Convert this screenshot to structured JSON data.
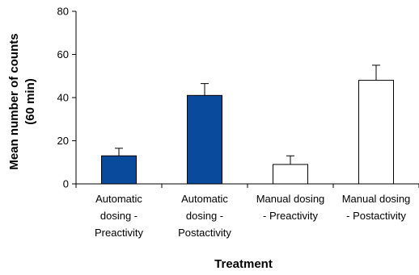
{
  "chart_data": {
    "type": "bar",
    "categories": [
      [
        "Automatic",
        "dosing -",
        "Preactivity"
      ],
      [
        "Automatic",
        "dosing -",
        "Postactivity"
      ],
      [
        "Manual dosing",
        "- Preactivity"
      ],
      [
        "Manual dosing",
        "- Postactivity"
      ]
    ],
    "values": [
      13,
      41,
      9,
      48
    ],
    "errors": [
      3.5,
      5.5,
      4,
      7
    ],
    "fills": [
      "#0a4a9c",
      "#0a4a9c",
      "#ffffff",
      "#ffffff"
    ],
    "xlabel": "Treatment",
    "ylabel": [
      "Mean number of counts",
      "(60 min)"
    ],
    "ylim": [
      0,
      80
    ],
    "yticks": [
      0,
      20,
      40,
      60,
      80
    ],
    "grid": false
  }
}
